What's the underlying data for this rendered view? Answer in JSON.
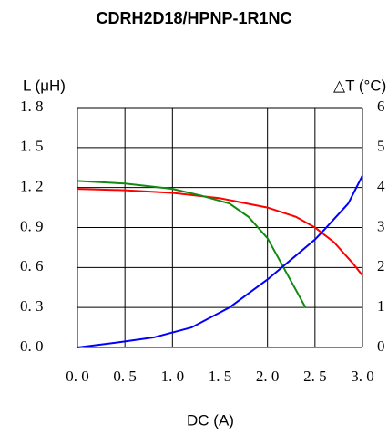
{
  "chart_data": {
    "type": "line",
    "title": "CDRH2D18/HPNP-1R1NC",
    "y_label": "L (μH)",
    "y2_label": "△T (°C)",
    "x_label": "DC (A)",
    "xlim": [
      0,
      3.0
    ],
    "ylim": [
      0,
      1.8
    ],
    "y2lim": [
      0,
      6
    ],
    "grid": true,
    "xticks": [
      {
        "value": 0,
        "label": "0. 0"
      },
      {
        "value": 0.5,
        "label": "0. 5"
      },
      {
        "value": 1.0,
        "label": "1. 0"
      },
      {
        "value": 1.5,
        "label": "1. 5"
      },
      {
        "value": 2.0,
        "label": "2. 0"
      },
      {
        "value": 2.5,
        "label": "2. 5"
      },
      {
        "value": 3.0,
        "label": "3. 0"
      }
    ],
    "yticks": [
      {
        "value": 0,
        "label": "0. 0"
      },
      {
        "value": 0.3,
        "label": "0. 3"
      },
      {
        "value": 0.6,
        "label": "0. 6"
      },
      {
        "value": 0.9,
        "label": "0. 9"
      },
      {
        "value": 1.2,
        "label": "1. 2"
      },
      {
        "value": 1.5,
        "label": "1. 5"
      },
      {
        "value": 1.8,
        "label": "1. 8"
      }
    ],
    "y2ticks": [
      0,
      1,
      2,
      3,
      4,
      5,
      6
    ],
    "series": [
      {
        "color": "#ff0000",
        "x": [
          0,
          0.5,
          1.0,
          1.5,
          2.0,
          2.3,
          2.5,
          2.7,
          2.9,
          3.0
        ],
        "values": [
          1.19,
          1.18,
          1.16,
          1.12,
          1.05,
          0.98,
          0.9,
          0.79,
          0.63,
          0.54
        ]
      },
      {
        "color": "#128a12",
        "x": [
          0,
          0.5,
          1.0,
          1.3,
          1.6,
          1.8,
          2.0,
          2.2,
          2.4
        ],
        "values": [
          1.25,
          1.23,
          1.19,
          1.14,
          1.08,
          0.98,
          0.82,
          0.56,
          0.3
        ]
      },
      {
        "color": "#0000ff",
        "axis": "y2",
        "x": [
          0,
          0.5,
          0.8,
          1.2,
          1.6,
          2.0,
          2.3,
          2.5,
          2.6,
          2.85,
          3.0
        ],
        "values": [
          0,
          0.15,
          0.25,
          0.5,
          1.0,
          1.7,
          2.3,
          2.7,
          2.95,
          3.6,
          4.3
        ]
      }
    ]
  }
}
